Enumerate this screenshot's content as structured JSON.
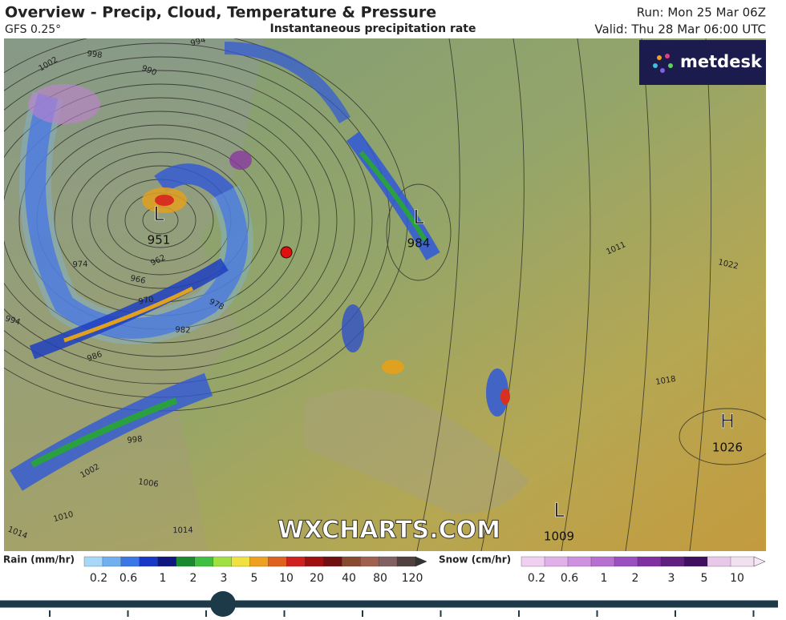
{
  "header": {
    "title": "Overview - Precip, Cloud, Temperature & Pressure",
    "model": "GFS 0.25°",
    "subtitle": "Instantaneous precipitation rate",
    "run": "Run: Mon 25 Mar 06Z",
    "valid": "Valid: Thu 28 Mar 06:00 UTC"
  },
  "logo": "metdesk",
  "watermark": "WXCHARTS.COM",
  "pressure_centers": [
    {
      "symbol": "L",
      "pressure": 951
    },
    {
      "symbol": "L",
      "pressure": 984
    },
    {
      "symbol": "H",
      "pressure": 1026
    },
    {
      "symbol": "L",
      "pressure": 1009
    }
  ],
  "isobar_labels": [
    1002,
    998,
    994,
    990,
    974,
    962,
    966,
    970,
    978,
    982,
    986,
    994,
    998,
    1002,
    1006,
    1010,
    1014,
    1014,
    1011,
    1022,
    1018
  ],
  "legend": {
    "rain": {
      "title": "Rain (mm/hr)",
      "ticks": [
        0.2,
        0.6,
        1,
        2,
        3,
        5,
        10,
        20,
        40,
        80,
        120
      ]
    },
    "snow": {
      "title": "Snow (cm/hr)",
      "ticks": [
        0.2,
        0.6,
        1,
        2,
        3,
        5,
        10
      ]
    }
  }
}
